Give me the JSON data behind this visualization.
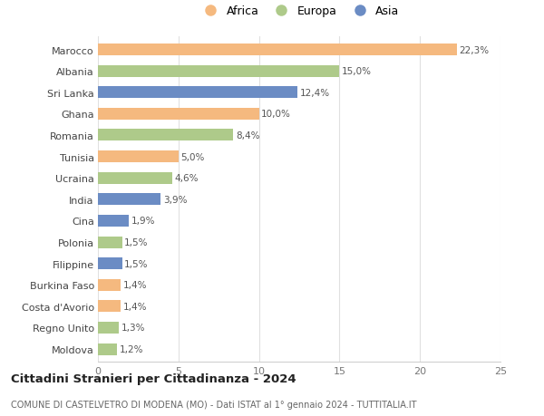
{
  "categories": [
    "Marocco",
    "Albania",
    "Sri Lanka",
    "Ghana",
    "Romania",
    "Tunisia",
    "Ucraina",
    "India",
    "Cina",
    "Polonia",
    "Filippine",
    "Burkina Faso",
    "Costa d'Avorio",
    "Regno Unito",
    "Moldova"
  ],
  "values": [
    22.3,
    15.0,
    12.4,
    10.0,
    8.4,
    5.0,
    4.6,
    3.9,
    1.9,
    1.5,
    1.5,
    1.4,
    1.4,
    1.3,
    1.2
  ],
  "labels": [
    "22,3%",
    "15,0%",
    "12,4%",
    "10,0%",
    "8,4%",
    "5,0%",
    "4,6%",
    "3,9%",
    "1,9%",
    "1,5%",
    "1,5%",
    "1,4%",
    "1,4%",
    "1,3%",
    "1,2%"
  ],
  "colors": [
    "#F5B97F",
    "#AECA8A",
    "#6B8CC4",
    "#F5B97F",
    "#AECA8A",
    "#F5B97F",
    "#AECA8A",
    "#6B8CC4",
    "#6B8CC4",
    "#AECA8A",
    "#6B8CC4",
    "#F5B97F",
    "#F5B97F",
    "#AECA8A",
    "#AECA8A"
  ],
  "legend_labels": [
    "Africa",
    "Europa",
    "Asia"
  ],
  "legend_colors": [
    "#F5B97F",
    "#AECA8A",
    "#6B8CC4"
  ],
  "title": "Cittadini Stranieri per Cittadinanza - 2024",
  "subtitle": "COMUNE DI CASTELVETRO DI MODENA (MO) - Dati ISTAT al 1° gennaio 2024 - TUTTITALIA.IT",
  "xlim": [
    0,
    25
  ],
  "xticks": [
    0,
    5,
    10,
    15,
    20,
    25
  ],
  "background_color": "#ffffff",
  "grid_color": "#e0e0e0",
  "bar_height": 0.55
}
